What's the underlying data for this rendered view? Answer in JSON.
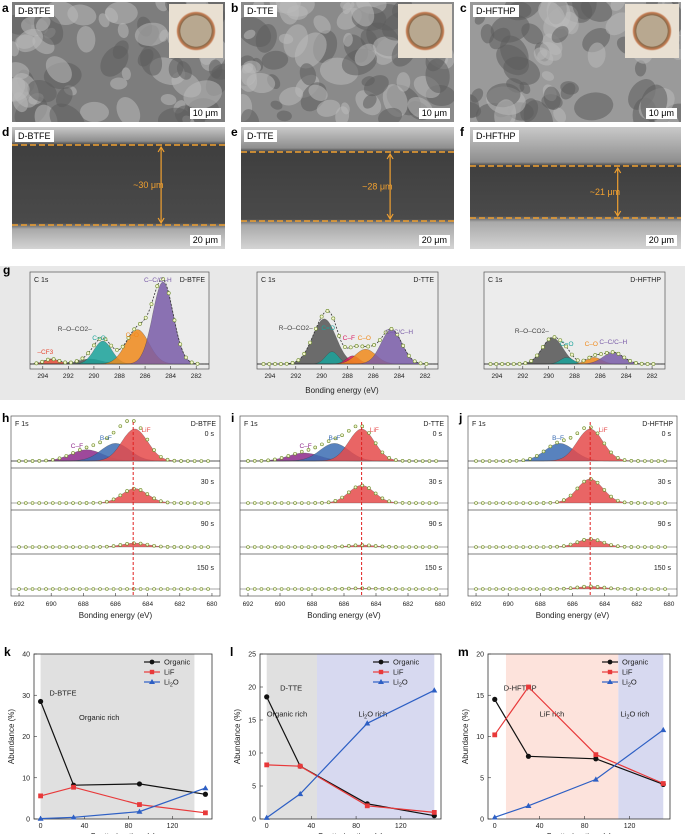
{
  "sem_top": [
    {
      "label": "a",
      "tag": "D-BTFE",
      "scale": "10 μm",
      "tone": "#7d7d7d"
    },
    {
      "label": "b",
      "tag": "D-TTE",
      "scale": "10 μm",
      "tone": "#8a8a8a"
    },
    {
      "label": "c",
      "tag": "D-HFTHP",
      "scale": "10 μm",
      "tone": "#9a9a9a"
    }
  ],
  "sem_cross": [
    {
      "label": "d",
      "tag": "D-BTFE",
      "scale": "20 μm",
      "thickness": "~30 μm"
    },
    {
      "label": "e",
      "tag": "D-TTE",
      "scale": "20 μm",
      "thickness": "~28 μm"
    },
    {
      "label": "f",
      "tag": "D-HFTHP",
      "scale": "20 μm",
      "thickness": "~21 μm"
    }
  ],
  "panel_g": {
    "label": "g",
    "xlabel": "Bonding energy (eV)",
    "ticks": [
      "294",
      "292",
      "290",
      "288",
      "286",
      "284",
      "282"
    ],
    "panels": [
      {
        "core": "C 1s",
        "sample": "D-BTFE",
        "peaks": [
          {
            "name": "–CF3",
            "color": "#e64b35"
          },
          {
            "name": "R–O–CO2–",
            "color": "#555555"
          },
          {
            "name": "C=O",
            "color": "#1aa39a"
          },
          {
            "name": "C–O",
            "color": "#f08a1c"
          },
          {
            "name": "C–C/C–H",
            "color": "#7a5ca8"
          }
        ]
      },
      {
        "core": "C 1s",
        "sample": "D-TTE",
        "peaks": [
          {
            "name": "R–O–CO2–",
            "color": "#555555"
          },
          {
            "name": "C=O",
            "color": "#1aa39a"
          },
          {
            "name": "C–F",
            "color": "#d81b60"
          },
          {
            "name": "C–O",
            "color": "#f08a1c"
          },
          {
            "name": "C–C/C–H",
            "color": "#7a5ca8"
          }
        ]
      },
      {
        "core": "C 1s",
        "sample": "D-HFTHP",
        "peaks": [
          {
            "name": "R–O–CO2–",
            "color": "#555555"
          },
          {
            "name": "C=O",
            "color": "#1aa39a"
          },
          {
            "name": "C–O",
            "color": "#f08a1c"
          },
          {
            "name": "C–C/C–H",
            "color": "#7a5ca8"
          }
        ]
      }
    ]
  },
  "f1s": {
    "xlabel": "Bonding energy (eV)",
    "ticks": [
      "692",
      "690",
      "688",
      "686",
      "684",
      "682",
      "680"
    ],
    "times": [
      "0 s",
      "30 s",
      "90 s",
      "150 s"
    ],
    "panels": [
      {
        "label": "h",
        "core": "F 1s",
        "sample": "D-BTFE",
        "peaks": [
          {
            "name": "C–F",
            "color": "#8e2a8a"
          },
          {
            "name": "B–F",
            "color": "#3b6db3"
          },
          {
            "name": "LiF",
            "color": "#e64b4b"
          }
        ]
      },
      {
        "label": "i",
        "core": "F 1s",
        "sample": "D-TTE",
        "peaks": [
          {
            "name": "C–F",
            "color": "#8e2a8a"
          },
          {
            "name": "B–F",
            "color": "#3b6db3"
          },
          {
            "name": "LiF",
            "color": "#e64b4b"
          }
        ]
      },
      {
        "label": "j",
        "core": "F 1s",
        "sample": "D-HFTHP",
        "peaks": [
          {
            "name": "B–F",
            "color": "#3b6db3"
          },
          {
            "name": "LiF",
            "color": "#e64b4b"
          }
        ]
      }
    ]
  },
  "chart_data": [
    {
      "type": "line",
      "label": "k",
      "xlabel": "Sputtering time (s)",
      "ylabel": "Abundance (%)",
      "xlim": [
        0,
        150
      ],
      "ylim": [
        0,
        40
      ],
      "xticks": [
        "0",
        "40",
        "80",
        "120"
      ],
      "yticks": [
        "0",
        "10",
        "20",
        "30",
        "40"
      ],
      "legend": [
        "Organic",
        "LiF",
        "Li2O"
      ],
      "legend_position": "top-right",
      "annotations": [
        "D-BTFE",
        "Organic rich"
      ],
      "series": [
        {
          "name": "Organic",
          "color": "#111111",
          "marker": "circle",
          "x": [
            0,
            30,
            90,
            150
          ],
          "y": [
            28.5,
            8.2,
            8.5,
            6.0
          ]
        },
        {
          "name": "LiF",
          "color": "#e8393a",
          "marker": "square",
          "x": [
            0,
            30,
            90,
            150
          ],
          "y": [
            5.6,
            7.7,
            3.5,
            1.5
          ]
        },
        {
          "name": "Li2O",
          "color": "#2d5fc4",
          "marker": "triangle",
          "x": [
            0,
            30,
            90,
            150
          ],
          "y": [
            0.1,
            0.4,
            1.8,
            7.5
          ]
        }
      ]
    },
    {
      "type": "line",
      "label": "l",
      "xlabel": "Sputtering time (s)",
      "ylabel": "Abundance (%)",
      "xlim": [
        0,
        150
      ],
      "ylim": [
        0,
        25
      ],
      "xticks": [
        "0",
        "40",
        "80",
        "120"
      ],
      "yticks": [
        "0",
        "5",
        "10",
        "15",
        "20",
        "25"
      ],
      "legend": [
        "Organic",
        "LiF",
        "Li2O"
      ],
      "legend_position": "top-right",
      "annotations": [
        "D-TTE",
        "Organic rich",
        "Li2O rich"
      ],
      "series": [
        {
          "name": "Organic",
          "color": "#111111",
          "marker": "circle",
          "x": [
            0,
            30,
            90,
            150
          ],
          "y": [
            18.5,
            8.0,
            2.3,
            0.5
          ]
        },
        {
          "name": "LiF",
          "color": "#e8393a",
          "marker": "square",
          "x": [
            0,
            30,
            90,
            150
          ],
          "y": [
            8.2,
            8.0,
            2.0,
            1.0
          ]
        },
        {
          "name": "Li2O",
          "color": "#2d5fc4",
          "marker": "triangle",
          "x": [
            0,
            30,
            90,
            150
          ],
          "y": [
            0.2,
            3.8,
            14.5,
            19.5
          ]
        }
      ]
    },
    {
      "type": "line",
      "label": "m",
      "xlabel": "Sputtering time (s)",
      "ylabel": "Abundance (%)",
      "xlim": [
        0,
        150
      ],
      "ylim": [
        0,
        20
      ],
      "xticks": [
        "0",
        "40",
        "80",
        "120"
      ],
      "yticks": [
        "0",
        "5",
        "10",
        "15",
        "20"
      ],
      "legend": [
        "Organic",
        "LiF",
        "Li2O"
      ],
      "legend_position": "top-right",
      "annotations": [
        "D-HFTHP",
        "LiF rich",
        "Li2O rich"
      ],
      "series": [
        {
          "name": "Organic",
          "color": "#111111",
          "marker": "circle",
          "x": [
            0,
            30,
            90,
            150
          ],
          "y": [
            14.5,
            7.6,
            7.3,
            4.2
          ]
        },
        {
          "name": "LiF",
          "color": "#e8393a",
          "marker": "square",
          "x": [
            0,
            30,
            90,
            150
          ],
          "y": [
            10.2,
            16.0,
            7.8,
            4.3
          ]
        },
        {
          "name": "Li2O",
          "color": "#2d5fc4",
          "marker": "triangle",
          "x": [
            0,
            30,
            90,
            150
          ],
          "y": [
            0.2,
            1.6,
            4.8,
            10.8
          ]
        }
      ]
    }
  ]
}
